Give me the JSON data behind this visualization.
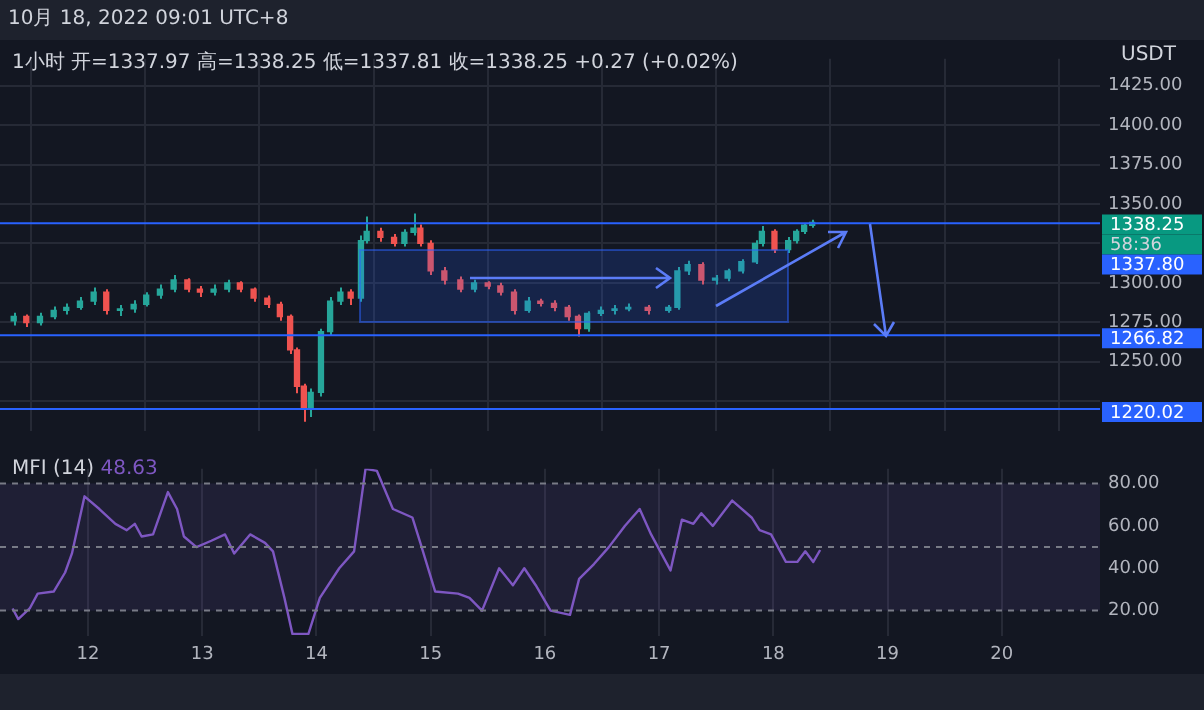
{
  "chart_data": [
    {
      "type": "candlestick",
      "title": "10月 18, 2022 09:01 UTC+8",
      "subtitle": "1小时 开=1337.97 高=1338.25 低=1337.81 收=1338.25 +0.27 (+0.02%)",
      "ylabel": "USDT",
      "x": [
        11.35,
        11.46,
        11.58,
        11.7,
        11.81,
        11.93,
        12.05,
        12.16,
        12.28,
        12.4,
        12.51,
        12.63,
        12.75,
        12.87,
        12.98,
        13.1,
        13.22,
        13.33,
        13.45,
        13.57,
        13.68,
        13.77,
        13.83,
        13.89,
        13.95,
        14.04,
        14.12,
        14.21,
        14.3,
        14.39,
        14.44,
        14.56,
        14.68,
        14.77,
        14.85,
        14.91,
        15.0,
        15.12,
        15.26,
        15.38,
        15.5,
        15.61,
        15.73,
        15.85,
        15.96,
        16.08,
        16.2,
        16.29,
        16.37,
        16.49,
        16.61,
        16.73,
        16.9,
        17.08,
        17.16,
        17.25,
        17.37,
        17.49,
        17.6,
        17.72,
        17.84,
        17.9,
        18.01,
        18.13,
        18.2,
        18.27,
        18.34
      ],
      "ohlc": [
        [
          1276,
          1281,
          1273,
          1278.7
        ],
        [
          1278.7,
          1280,
          1272,
          1274.9
        ],
        [
          1274.9,
          1281,
          1273,
          1278.7
        ],
        [
          1278.7,
          1285,
          1277,
          1282.6
        ],
        [
          1282.6,
          1287,
          1280,
          1284.5
        ],
        [
          1284.5,
          1291,
          1283,
          1288.4
        ],
        [
          1288.4,
          1297,
          1286,
          1294.1
        ],
        [
          1294.1,
          1296,
          1280,
          1282.6
        ],
        [
          1282.6,
          1286,
          1279,
          1283.5
        ],
        [
          1283.5,
          1289,
          1281,
          1286.4
        ],
        [
          1286.4,
          1294,
          1285,
          1292.2
        ],
        [
          1292.2,
          1299,
          1290,
          1296
        ],
        [
          1296,
          1305,
          1294,
          1301.8
        ],
        [
          1301.8,
          1303,
          1294,
          1296
        ],
        [
          1296,
          1298,
          1291,
          1294.1
        ],
        [
          1294.1,
          1299,
          1292,
          1296
        ],
        [
          1296,
          1302,
          1294,
          1299.9
        ],
        [
          1299.9,
          1301,
          1294,
          1296
        ],
        [
          1296,
          1297,
          1288,
          1290.3
        ],
        [
          1290.3,
          1292,
          1284,
          1286.4
        ],
        [
          1286.4,
          1288,
          1276,
          1278.7
        ],
        [
          1278.7,
          1280,
          1255,
          1257.5
        ],
        [
          1257.5,
          1259,
          1230,
          1234.5
        ],
        [
          1234.5,
          1236,
          1212,
          1221
        ],
        [
          1221,
          1233,
          1215,
          1230.6
        ],
        [
          1230.6,
          1271,
          1228,
          1269.1
        ],
        [
          1269.1,
          1291,
          1267,
          1288.4
        ],
        [
          1288.4,
          1297,
          1286,
          1294.1
        ],
        [
          1294.1,
          1296,
          1286,
          1290.3
        ],
        [
          1290.3,
          1330,
          1288,
          1326.8
        ],
        [
          1326.8,
          1342,
          1325,
          1332.6
        ],
        [
          1332.6,
          1335,
          1326,
          1328.8
        ],
        [
          1328.8,
          1331,
          1323,
          1325
        ],
        [
          1325,
          1334,
          1323,
          1332
        ],
        [
          1332,
          1344,
          1330,
          1334.6
        ],
        [
          1334.6,
          1337,
          1323,
          1325
        ],
        [
          1325,
          1327,
          1305,
          1307.6
        ],
        [
          1307.6,
          1310,
          1299,
          1301.8
        ],
        [
          1301.8,
          1304,
          1294,
          1296
        ],
        [
          1296,
          1302,
          1294,
          1299.9
        ],
        [
          1299.9,
          1301,
          1296,
          1298
        ],
        [
          1298,
          1300,
          1292,
          1294.1
        ],
        [
          1294.1,
          1296,
          1280,
          1282.6
        ],
        [
          1282.6,
          1291,
          1281,
          1288.4
        ],
        [
          1288.4,
          1290,
          1285,
          1287
        ],
        [
          1287,
          1289,
          1282,
          1284.5
        ],
        [
          1284.5,
          1286,
          1276,
          1278.7
        ],
        [
          1278.7,
          1280,
          1266,
          1271
        ],
        [
          1271,
          1282,
          1269,
          1280.7
        ],
        [
          1280.7,
          1285,
          1279,
          1282.6
        ],
        [
          1282.6,
          1286,
          1280,
          1283.5
        ],
        [
          1283.5,
          1287,
          1282,
          1284.5
        ],
        [
          1284.5,
          1286,
          1280,
          1282.6
        ],
        [
          1282.6,
          1286,
          1281,
          1284.5
        ],
        [
          1284.5,
          1310,
          1283,
          1307.6
        ],
        [
          1307.6,
          1314,
          1305,
          1311.5
        ],
        [
          1311.5,
          1313,
          1299,
          1301.8
        ],
        [
          1301.8,
          1305,
          1299,
          1303
        ],
        [
          1303,
          1309,
          1301,
          1307.6
        ],
        [
          1307.6,
          1315,
          1306,
          1313.4
        ],
        [
          1313.4,
          1327,
          1312,
          1325
        ],
        [
          1325,
          1336,
          1323,
          1332.6
        ],
        [
          1332.6,
          1334,
          1319,
          1321.1
        ],
        [
          1321.1,
          1329,
          1319,
          1326.8
        ],
        [
          1326.8,
          1334,
          1325,
          1332.6
        ],
        [
          1332.6,
          1338,
          1331,
          1336.5
        ],
        [
          1336.5,
          1340,
          1335,
          1338.25
        ]
      ],
      "colors": [
        "#26a69a",
        "#ef5350",
        "#26a69a",
        "#26a69a",
        "#26a69a",
        "#26a69a",
        "#26a69a",
        "#ef5350",
        "#26a69a",
        "#26a69a",
        "#26a69a",
        "#26a69a",
        "#26a69a",
        "#ef5350",
        "#ef5350",
        "#26a69a",
        "#26a69a",
        "#ef5350",
        "#ef5350",
        "#ef5350",
        "#ef5350",
        "#ef5350",
        "#ef5350",
        "#ef5350",
        "#26a69a",
        "#26a69a",
        "#26a69a",
        "#26a69a",
        "#ef5350",
        "#26a69a",
        "#26a69a",
        "#ef5350",
        "#ef5350",
        "#26a69a",
        "#26a69a",
        "#ef5350",
        "#ef5350",
        "#ef5350",
        "#ef5350",
        "#26a69a",
        "#ef5350",
        "#ef5350",
        "#ef5350",
        "#26a69a",
        "#ef5350",
        "#ef5350",
        "#ef5350",
        "#ef5350",
        "#26a69a",
        "#26a69a",
        "#26a69a",
        "#26a69a",
        "#ef5350",
        "#26a69a",
        "#26a69a",
        "#26a69a",
        "#ef5350",
        "#26a69a",
        "#26a69a",
        "#26a69a",
        "#26a69a",
        "#26a69a",
        "#ef5350",
        "#26a69a",
        "#26a69a",
        "#26a69a",
        "#26a69a"
      ],
      "xlim": [
        11.23,
        20.86
      ],
      "xticks": [
        12,
        13,
        14,
        15,
        16,
        17,
        18,
        19,
        20
      ],
      "ylim": [
        1206,
        1442
      ],
      "yticks": [
        {
          "value": 1225,
          "label": null
        },
        {
          "value": 1250,
          "label": "1250.00"
        },
        {
          "value": 1275,
          "label": "1275.00"
        },
        {
          "value": 1300,
          "label": "1300.00"
        },
        {
          "value": 1325,
          "label": null
        },
        {
          "value": 1350,
          "label": "1350.00"
        },
        {
          "value": 1375,
          "label": "1375.00"
        },
        {
          "value": 1400,
          "label": "1400.00"
        },
        {
          "value": 1425,
          "label": "1425.00"
        }
      ],
      "tick_labels": "y",
      "grid": true,
      "ref_lines": [
        {
          "axis": "y",
          "value": 1337.8,
          "label": "1337.80",
          "color": "#2962ff"
        },
        {
          "axis": "y",
          "value": 1266.82,
          "label": "1266.82",
          "color": "#2962ff"
        },
        {
          "axis": "y",
          "value": 1220.02,
          "label": "1220.02",
          "color": "#2962ff"
        }
      ],
      "annotations": [
        "1338.25",
        "58:36"
      ]
    },
    {
      "type": "line",
      "series": [
        {
          "name": "MFI (14)",
          "color": "#7e57c2",
          "x": [
            11.34,
            11.39,
            11.49,
            11.56,
            11.7,
            11.8,
            11.86,
            11.97,
            12.1,
            12.24,
            12.34,
            12.41,
            12.47,
            12.57,
            12.7,
            12.78,
            12.84,
            12.95,
            13.08,
            13.2,
            13.28,
            13.42,
            13.55,
            13.62,
            13.72,
            13.79,
            13.93,
            14.03,
            14.2,
            14.33,
            14.43,
            14.53,
            14.67,
            14.84,
            14.91,
            15.04,
            15.24,
            15.34,
            15.45,
            15.6,
            15.72,
            15.82,
            15.92,
            16.05,
            16.22,
            16.3,
            16.43,
            16.56,
            16.7,
            16.83,
            16.93,
            17.1,
            17.2,
            17.3,
            17.37,
            17.47,
            17.64,
            17.81,
            17.88,
            17.98,
            18.11,
            18.21,
            18.28,
            18.35,
            18.41
          ],
          "values": [
            21,
            16,
            21,
            28,
            29,
            38,
            47,
            74,
            68,
            61,
            58,
            61,
            55,
            56,
            76,
            68,
            55,
            50,
            53,
            56,
            47,
            56,
            52,
            48,
            26,
            9,
            9,
            26,
            40,
            48,
            87,
            86,
            68,
            64,
            52,
            29,
            28,
            26,
            20,
            40,
            32,
            40,
            32,
            20,
            18,
            35,
            42,
            50,
            60,
            68,
            56,
            39,
            63,
            61,
            66,
            60,
            72,
            64,
            58,
            56,
            43,
            43,
            48,
            43,
            48.63
          ]
        }
      ],
      "xlim": [
        11.23,
        20.86
      ],
      "xticks": [
        12,
        13,
        14,
        15,
        16,
        17,
        18,
        19,
        20
      ],
      "ylim": [
        8,
        87
      ],
      "yticks": [
        {
          "value": 20,
          "label": "20.00"
        },
        {
          "value": 40,
          "label": "40.00"
        },
        {
          "value": 60,
          "label": "60.00"
        },
        {
          "value": 80,
          "label": "80.00"
        }
      ],
      "grid": "x",
      "bands": [
        {
          "axis": "y",
          "from": 20,
          "to": 80,
          "color": "#7e57c2"
        }
      ],
      "ref_lines": [
        {
          "axis": "y",
          "value": 80,
          "color": "#787b86",
          "line_style": "dashed"
        },
        {
          "axis": "y",
          "value": 50,
          "color": "#787b86",
          "line_style": "dashed"
        },
        {
          "axis": "y",
          "value": 20,
          "color": "#787b86",
          "line_style": "dashed"
        }
      ],
      "annotations": [
        "48.63"
      ]
    }
  ]
}
